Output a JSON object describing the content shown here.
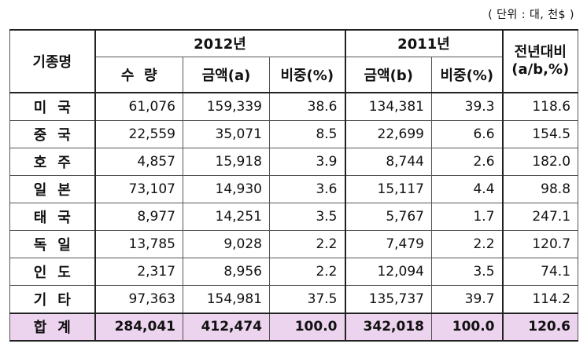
{
  "unit_note": "( 단위 : 대, 천$ )",
  "header": {
    "country_col": "기종명",
    "year_2012": "2012년",
    "year_2011": "2011년",
    "yoy_line1": "전년대비",
    "yoy_line2": "(a/b,%)",
    "quantity": "수  량",
    "amount_a": "금액(a)",
    "share_2012": "비중(%)",
    "amount_b": "금액(b)",
    "share_2011": "비중(%)"
  },
  "rows": [
    {
      "name": "미국",
      "qty": "61,076",
      "amt_a": "159,339",
      "share12": "38.6",
      "amt_b": "134,381",
      "share11": "39.3",
      "yoy": "118.6"
    },
    {
      "name": "중국",
      "qty": "22,559",
      "amt_a": "35,071",
      "share12": "8.5",
      "amt_b": "22,699",
      "share11": "6.6",
      "yoy": "154.5"
    },
    {
      "name": "호주",
      "qty": "4,857",
      "amt_a": "15,918",
      "share12": "3.9",
      "amt_b": "8,744",
      "share11": "2.6",
      "yoy": "182.0"
    },
    {
      "name": "일본",
      "qty": "73,107",
      "amt_a": "14,930",
      "share12": "3.6",
      "amt_b": "15,117",
      "share11": "4.4",
      "yoy": "98.8"
    },
    {
      "name": "태국",
      "qty": "8,977",
      "amt_a": "14,251",
      "share12": "3.5",
      "amt_b": "5,767",
      "share11": "1.7",
      "yoy": "247.1"
    },
    {
      "name": "독일",
      "qty": "13,785",
      "amt_a": "9,028",
      "share12": "2.2",
      "amt_b": "7,479",
      "share11": "2.2",
      "yoy": "120.7"
    },
    {
      "name": "인도",
      "qty": "2,317",
      "amt_a": "8,956",
      "share12": "2.2",
      "amt_b": "12,094",
      "share11": "3.5",
      "yoy": "74.1"
    },
    {
      "name": "기타",
      "qty": "97,363",
      "amt_a": "154,981",
      "share12": "37.5",
      "amt_b": "135,737",
      "share11": "39.7",
      "yoy": "114.2"
    }
  ],
  "total": {
    "name": "합계",
    "qty": "284,041",
    "amt_a": "412,474",
    "share12": "100.0",
    "amt_b": "342,018",
    "share11": "100.0",
    "yoy": "120.6"
  },
  "colors": {
    "total_row_bg": "#ecd3ee",
    "border": "#555555"
  }
}
